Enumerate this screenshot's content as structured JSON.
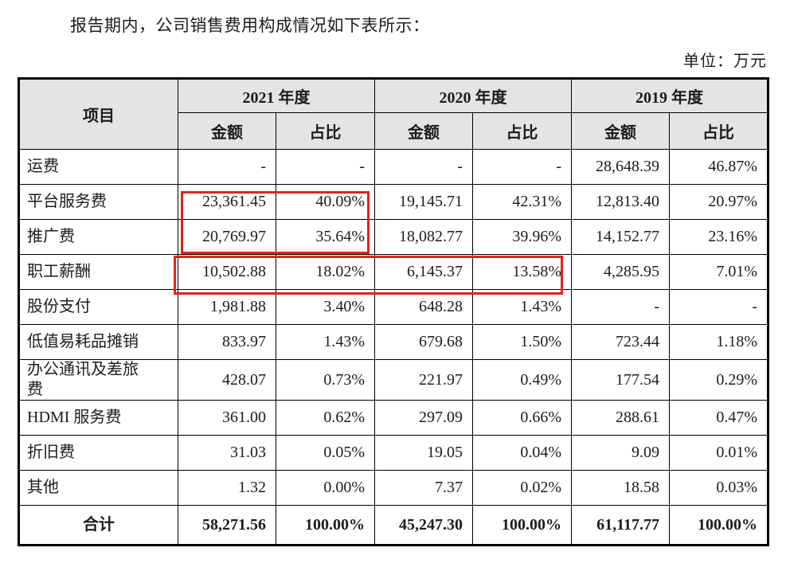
{
  "page": {
    "intro_text": "报告期内，公司销售费用构成情况如下表所示：",
    "unit_label": "单位：万元"
  },
  "table": {
    "item_header": "项目",
    "year_groups": [
      {
        "label": "2021 年度",
        "sub": [
          "金额",
          "占比"
        ]
      },
      {
        "label": "2020 年度",
        "sub": [
          "金额",
          "占比"
        ]
      },
      {
        "label": "2019 年度",
        "sub": [
          "金额",
          "占比"
        ]
      }
    ],
    "rows": [
      {
        "label": "运费",
        "values": [
          "-",
          "-",
          "-",
          "-",
          "28,648.39",
          "46.87%"
        ]
      },
      {
        "label": "平台服务费",
        "values": [
          "23,361.45",
          "40.09%",
          "19,145.71",
          "42.31%",
          "12,813.40",
          "20.97%"
        ]
      },
      {
        "label": "推广费",
        "values": [
          "20,769.97",
          "35.64%",
          "18,082.77",
          "39.96%",
          "14,152.77",
          "23.16%"
        ]
      },
      {
        "label": "职工薪酬",
        "values": [
          "10,502.88",
          "18.02%",
          "6,145.37",
          "13.58%",
          "4,285.95",
          "7.01%"
        ]
      },
      {
        "label": "股份支付",
        "values": [
          "1,981.88",
          "3.40%",
          "648.28",
          "1.43%",
          "-",
          "-"
        ]
      },
      {
        "label": "低值易耗品摊销",
        "values": [
          "833.97",
          "1.43%",
          "679.68",
          "1.50%",
          "723.44",
          "1.18%"
        ]
      },
      {
        "label": "办公通讯及差旅费",
        "values": [
          "428.07",
          "0.73%",
          "221.97",
          "0.49%",
          "177.54",
          "0.29%"
        ]
      },
      {
        "label": "HDMI 服务费",
        "values": [
          "361.00",
          "0.62%",
          "297.09",
          "0.66%",
          "288.61",
          "0.47%"
        ]
      },
      {
        "label": "折旧费",
        "values": [
          "31.03",
          "0.05%",
          "19.05",
          "0.04%",
          "9.09",
          "0.01%"
        ]
      },
      {
        "label": "其他",
        "values": [
          "1.32",
          "0.00%",
          "7.37",
          "0.02%",
          "18.58",
          "0.03%"
        ]
      },
      {
        "label": "合计",
        "is_total": true,
        "values": [
          "58,271.56",
          "100.00%",
          "45,247.30",
          "100.00%",
          "61,117.77",
          "100.00%"
        ]
      }
    ],
    "highlights": [
      {
        "name": "2021-platform-promotion",
        "covers": "平台服务费、推广费 的 2021 年度 金额/占比"
      },
      {
        "name": "staff-salary-2021-2020",
        "covers": "职工薪酬 的 2021 年度及 2020 年度 金额/占比"
      }
    ]
  },
  "colors": {
    "highlight_red": "#e1241e",
    "header_bg": "#e4e4e4",
    "border_black": "#000000"
  }
}
